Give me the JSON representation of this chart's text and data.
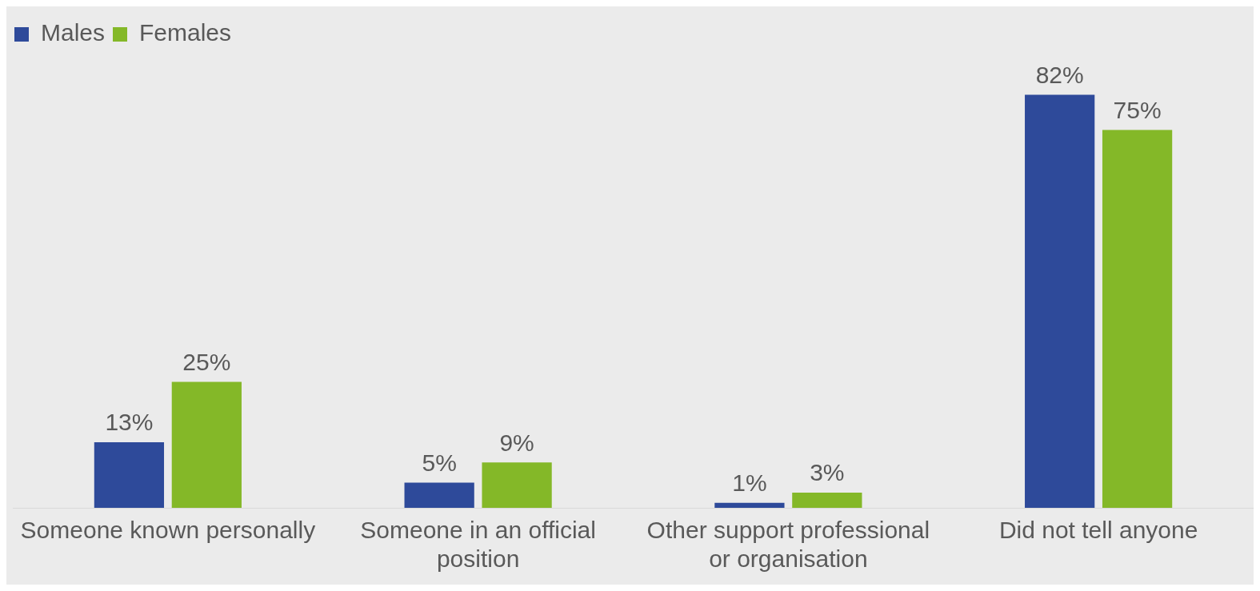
{
  "chart_data": {
    "type": "bar",
    "categories": [
      "Someone known personally",
      "Someone in an official position",
      "Other support professional or organisation",
      "Did not tell anyone"
    ],
    "series": [
      {
        "name": "Males",
        "color": "#2e4a9a",
        "values": [
          13,
          5,
          1,
          82
        ],
        "value_labels": [
          "13%",
          "5%",
          "1%",
          "82%"
        ]
      },
      {
        "name": "Females",
        "color": "#84b828",
        "values": [
          25,
          9,
          3,
          75
        ],
        "value_labels": [
          "25%",
          "9%",
          "3%",
          "75%"
        ]
      }
    ],
    "relative": false,
    "grid": false,
    "legend": "top left"
  }
}
